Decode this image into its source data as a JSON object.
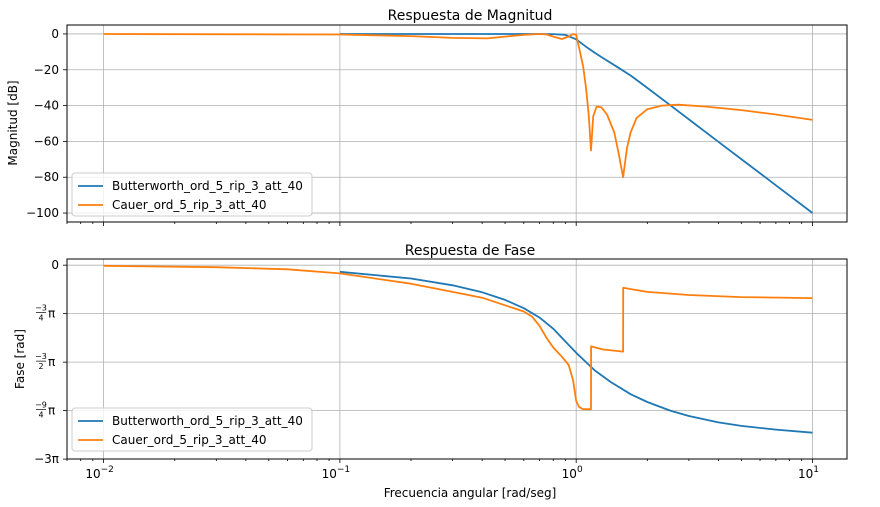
{
  "chart_data": [
    {
      "type": "line",
      "title": "Respuesta de Magnitud",
      "ylabel": "Magnitud [dB]",
      "xlabel": "",
      "xscale": "log",
      "xlim": [
        0.007,
        14
      ],
      "ylim": [
        -105,
        5
      ],
      "grid": true,
      "legend_position": "lower-left",
      "y_ticks": [
        {
          "v": 0,
          "label": "0"
        },
        {
          "v": -20,
          "label": "−20"
        },
        {
          "v": -40,
          "label": "−40"
        },
        {
          "v": -60,
          "label": "−60"
        },
        {
          "v": -80,
          "label": "−80"
        },
        {
          "v": -100,
          "label": "−100"
        }
      ],
      "series": [
        {
          "name": "Butterworth_ord_5_rip_3_att_40",
          "color": "#1f77b4",
          "x": [
            0.1,
            0.3,
            0.5,
            0.7,
            0.8,
            0.9,
            1.0,
            1.1,
            1.2,
            1.3,
            1.5,
            1.7,
            2.0,
            2.5,
            3.0,
            4.0,
            5.0,
            7.0,
            10.0
          ],
          "y": [
            0,
            0,
            0,
            -0.02,
            -0.1,
            -0.5,
            -3.0,
            -7.1,
            -10.6,
            -13.5,
            -18.6,
            -23.2,
            -30.1,
            -39.8,
            -47.7,
            -60.2,
            -69.9,
            -84.5,
            -100
          ]
        },
        {
          "name": "Cauer_ord_5_rip_3_att_40",
          "color": "#ff7f0e",
          "x": [
            0.01,
            0.1,
            0.2,
            0.3,
            0.42,
            0.5,
            0.6,
            0.7,
            0.75,
            0.8,
            0.87,
            0.93,
            0.97,
            1.0,
            1.03,
            1.07,
            1.1,
            1.13,
            1.155,
            1.18,
            1.22,
            1.28,
            1.35,
            1.45,
            1.52,
            1.58,
            1.64,
            1.7,
            1.8,
            2.0,
            2.3,
            2.7,
            3.5,
            5.0,
            7.0,
            10.0
          ],
          "y": [
            0,
            -0.3,
            -1.2,
            -2.2,
            -2.5,
            -1.5,
            -0.5,
            0,
            -0.3,
            -1.5,
            -2.8,
            -1.5,
            0,
            -0.5,
            -8,
            -18,
            -30,
            -45,
            -65,
            -46,
            -40.5,
            -41,
            -45,
            -55,
            -68,
            -80,
            -64,
            -55,
            -47,
            -42,
            -40,
            -39.5,
            -40.5,
            -42.5,
            -45,
            -48
          ]
        }
      ]
    },
    {
      "type": "line",
      "title": "Respuesta de Fase",
      "ylabel": "Fase [rad]",
      "xlabel": "Frecuencia angular [rad/seg]",
      "xscale": "log",
      "xlim": [
        0.007,
        14
      ],
      "ylim": [
        -9.42,
        0.3
      ],
      "grid": true,
      "legend_position": "lower-left",
      "y_ticks": [
        {
          "v": 0,
          "label": "0"
        },
        {
          "v": -2.356,
          "num": "−3",
          "den": "4"
        },
        {
          "v": -4.712,
          "num": "−3",
          "den": "2"
        },
        {
          "v": -7.069,
          "num": "−9",
          "den": "4"
        },
        {
          "v": -9.425,
          "label": "−3π"
        }
      ],
      "series": [
        {
          "name": "Butterworth_ord_5_rip_3_att_40",
          "color": "#1f77b4",
          "x": [
            0.1,
            0.2,
            0.3,
            0.4,
            0.5,
            0.6,
            0.7,
            0.8,
            0.9,
            1.0,
            1.1,
            1.2,
            1.4,
            1.7,
            2.0,
            2.5,
            3.0,
            4.0,
            5.0,
            7.0,
            10.0
          ],
          "y": [
            -0.32,
            -0.65,
            -0.98,
            -1.32,
            -1.69,
            -2.09,
            -2.55,
            -3.09,
            -3.71,
            -4.26,
            -4.71,
            -5.12,
            -5.68,
            -6.27,
            -6.65,
            -7.07,
            -7.33,
            -7.64,
            -7.81,
            -7.99,
            -8.14
          ]
        },
        {
          "name": "Cauer_ord_5_rip_3_att_40",
          "color": "#ff7f0e",
          "x": [
            0.01,
            0.03,
            0.06,
            0.1,
            0.2,
            0.3,
            0.4,
            0.5,
            0.6,
            0.65,
            0.7,
            0.75,
            0.8,
            0.87,
            0.93,
            0.97,
            1.0,
            1.03,
            1.07,
            1.12,
            1.155,
            1.156,
            1.3,
            1.58,
            1.581,
            2.0,
            3.0,
            5.0,
            10.0
          ],
          "y": [
            -0.03,
            -0.1,
            -0.2,
            -0.4,
            -0.9,
            -1.3,
            -1.58,
            -1.95,
            -2.25,
            -2.5,
            -2.95,
            -3.55,
            -4.0,
            -4.45,
            -4.85,
            -5.6,
            -6.6,
            -6.9,
            -7.0,
            -7.0,
            -7.0,
            -3.95,
            -4.1,
            -4.2,
            -1.1,
            -1.3,
            -1.45,
            -1.55,
            -1.6
          ]
        }
      ]
    }
  ],
  "x_ticks": [
    {
      "v": 0.01,
      "exp": "−2"
    },
    {
      "v": 0.1,
      "exp": "−1"
    },
    {
      "v": 1,
      "exp": "0"
    },
    {
      "v": 10,
      "exp": "1"
    }
  ]
}
